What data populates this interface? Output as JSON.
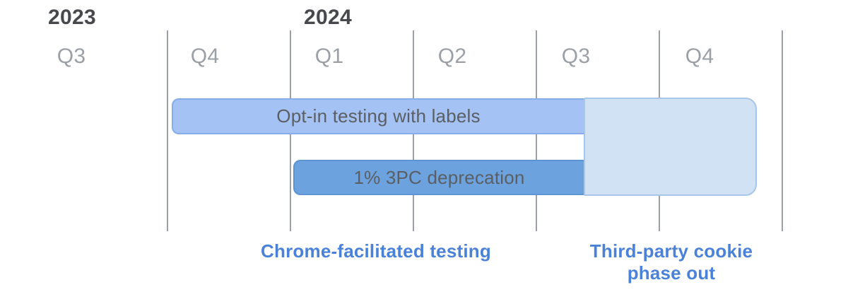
{
  "timeline": {
    "years": [
      {
        "label": "2023"
      },
      {
        "label": "2024"
      }
    ],
    "quarters": [
      {
        "label": "Q3",
        "year": "2023"
      },
      {
        "label": "Q4",
        "year": "2023"
      },
      {
        "label": "Q1",
        "year": "2024"
      },
      {
        "label": "Q2",
        "year": "2024"
      },
      {
        "label": "Q3",
        "year": "2024"
      },
      {
        "label": "Q4",
        "year": "2024"
      }
    ],
    "bars": [
      {
        "label": "Opt-in testing with labels"
      },
      {
        "label": "1% 3PC deprecation"
      }
    ],
    "captions": [
      {
        "label": "Chrome-facilitated testing"
      },
      {
        "label": "Third-party cookie\nphase out"
      }
    ],
    "colors": {
      "optin_bar_fill": "#a4c2f3",
      "optin_bar_border": "#86ace9",
      "deprecation_bar_fill": "#6ca2dd",
      "deprecation_bar_border": "#5b93d3",
      "phase_out_fill": "#d0e2f4",
      "phase_out_border": "#a6c6ea",
      "gridline": "#9aa0a6",
      "year_text": "#47494d",
      "quarter_text": "#9aa0a6",
      "bar_text": "#5b5f64",
      "caption_text": "#4b82d9"
    }
  },
  "chart_data": {
    "type": "bar",
    "subtype": "gantt-timeline",
    "title": "",
    "x_axis": {
      "unit": "quarter",
      "year_labels": [
        "2023",
        "2024"
      ],
      "tick_labels": [
        "Q3",
        "Q4",
        "Q1",
        "Q2",
        "Q3",
        "Q4"
      ],
      "quarters": [
        "2023-Q3",
        "2023-Q4",
        "2024-Q1",
        "2024-Q2",
        "2024-Q3",
        "2024-Q4"
      ],
      "grid": "vertical lines at quarter boundaries"
    },
    "tasks": [
      {
        "name": "Opt-in testing with labels",
        "start": "2023-Q4 start",
        "end": "2024-Q3 mid",
        "row": 1,
        "style": "light-blue bar, rounded left end"
      },
      {
        "name": "1% 3PC deprecation",
        "start": "2024-Q1 start",
        "end": "2024-Q3 mid",
        "row": 2,
        "style": "medium-blue bar, rounded left end"
      },
      {
        "name": "Third-party cookie phase out",
        "start": "2024-Q3 mid",
        "end": "2024-Q4 late",
        "row": "spans rows 1-2",
        "style": "pale-blue region, rounded right end"
      }
    ],
    "annotations": [
      {
        "text": "Chrome-facilitated testing",
        "position": "below chart, under testing bars"
      },
      {
        "text": "Third-party cookie phase out",
        "position": "below chart, under phase-out region, two lines"
      }
    ],
    "legend": "none"
  }
}
